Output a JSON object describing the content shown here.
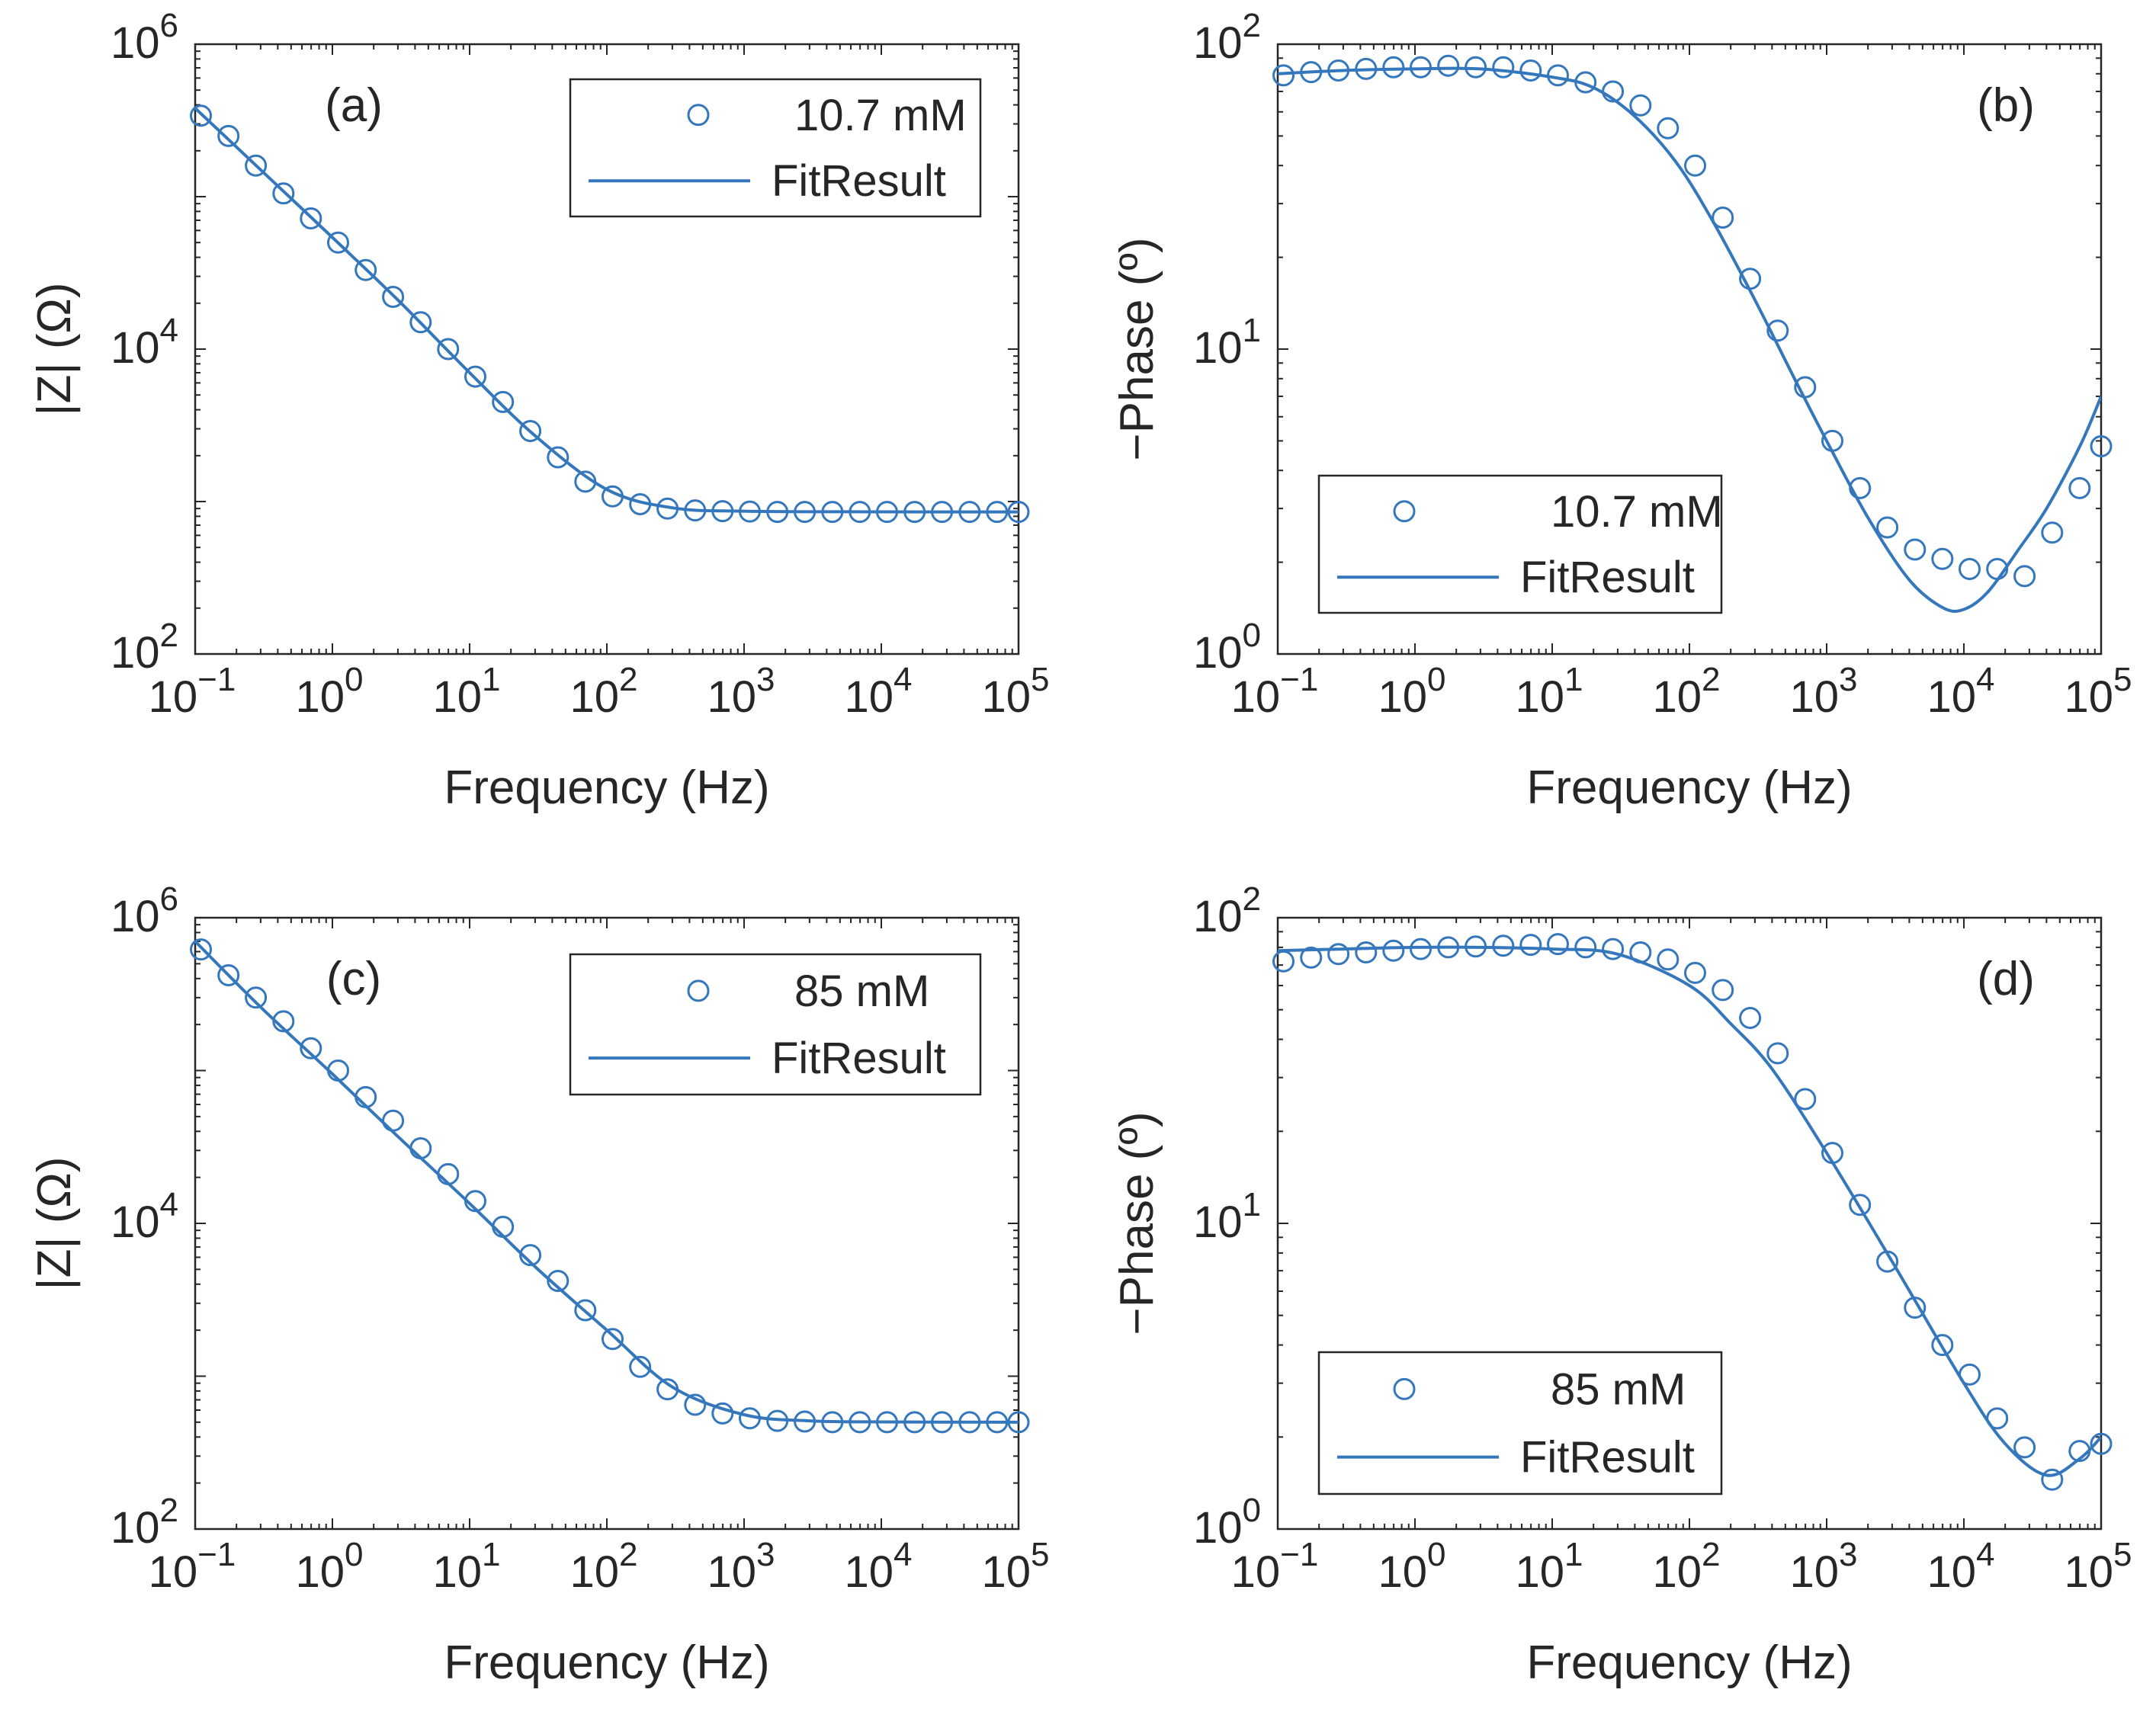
{
  "style": {
    "series_color": "#3577BC",
    "axis_color": "#262626"
  },
  "chart_data": [
    {
      "id": "a",
      "type": "scatter",
      "panel_label": "(a)",
      "xlabel": "Frequency (Hz)",
      "ylabel": "|Z| (Ω)",
      "xscale": "log",
      "yscale": "log",
      "xlim": [
        0.1,
        100000
      ],
      "ylim": [
        100,
        1000000
      ],
      "xticks": [
        {
          "base": "10",
          "exp": "−1"
        },
        {
          "base": "10",
          "exp": "0"
        },
        {
          "base": "10",
          "exp": "1"
        },
        {
          "base": "10",
          "exp": "2"
        },
        {
          "base": "10",
          "exp": "3"
        },
        {
          "base": "10",
          "exp": "4"
        },
        {
          "base": "10",
          "exp": "5"
        }
      ],
      "yticks": [
        {
          "base": "10",
          "exp": "2"
        },
        {
          "base": "10",
          "exp": "4"
        },
        {
          "base": "10",
          "exp": "6"
        }
      ],
      "legend": {
        "position": "top-right",
        "marker_label": "10.7 mM",
        "line_label": "FitResult"
      },
      "series": [
        {
          "name": "10.7 mM",
          "kind": "markers",
          "x": [
            0.11,
            0.175,
            0.277,
            0.44,
            0.697,
            1.1,
            1.75,
            2.77,
            4.4,
            6.97,
            11,
            17.5,
            27.7,
            44,
            69.7,
            110,
            175,
            277,
            440,
            697,
            1100,
            1750,
            2770,
            4400,
            6970,
            11000,
            17500,
            27700,
            44000,
            69700,
            100000
          ],
          "y": [
            340000,
            250000,
            160000,
            105000,
            72000,
            50000,
            33000,
            22000,
            15000,
            10000,
            6600,
            4500,
            2900,
            1950,
            1350,
            1080,
            960,
            900,
            875,
            865,
            860,
            855,
            855,
            855,
            855,
            855,
            855,
            855,
            855,
            855,
            855
          ]
        },
        {
          "name": "FitResult",
          "kind": "line",
          "x": [
            0.1,
            0.3,
            1,
            3,
            10,
            30,
            100,
            300,
            1000,
            10000,
            100000
          ],
          "y": [
            380000,
            150000,
            54000,
            21000,
            7000,
            2700,
            1200,
            910,
            865,
            856,
            855
          ]
        }
      ]
    },
    {
      "id": "b",
      "type": "scatter",
      "panel_label": "(b)",
      "xlabel": "Frequency (Hz)",
      "ylabel": "−Phase (º)",
      "xscale": "log",
      "yscale": "log",
      "xlim": [
        0.1,
        100000
      ],
      "ylim": [
        1,
        100
      ],
      "xticks": [
        {
          "base": "10",
          "exp": "−1"
        },
        {
          "base": "10",
          "exp": "0"
        },
        {
          "base": "10",
          "exp": "1"
        },
        {
          "base": "10",
          "exp": "2"
        },
        {
          "base": "10",
          "exp": "3"
        },
        {
          "base": "10",
          "exp": "4"
        },
        {
          "base": "10",
          "exp": "5"
        }
      ],
      "yticks": [
        {
          "base": "10",
          "exp": "0"
        },
        {
          "base": "10",
          "exp": "1"
        },
        {
          "base": "10",
          "exp": "2"
        }
      ],
      "legend": {
        "position": "bottom-left",
        "marker_label": "10.7 mM",
        "line_label": "FitResult"
      },
      "series": [
        {
          "name": "10.7 mM",
          "kind": "markers",
          "x": [
            0.11,
            0.175,
            0.277,
            0.44,
            0.697,
            1.1,
            1.75,
            2.77,
            4.4,
            6.97,
            11,
            17.5,
            27.7,
            44,
            69.7,
            110,
            175,
            277,
            440,
            697,
            1100,
            1750,
            2770,
            4400,
            6970,
            11000,
            17500,
            27700,
            44000,
            69700,
            100000
          ],
          "y": [
            79,
            81,
            82,
            83,
            84,
            84,
            85,
            84,
            84,
            82,
            79,
            75,
            70,
            63,
            53,
            40,
            27,
            17,
            11.5,
            7.5,
            5,
            3.5,
            2.6,
            2.2,
            2.05,
            1.9,
            1.9,
            1.8,
            2.5,
            3.5,
            4.8
          ]
        },
        {
          "name": "FitResult",
          "kind": "line",
          "x": [
            0.1,
            0.3,
            1,
            3,
            10,
            20,
            40,
            80,
            150,
            300,
            600,
            1000,
            2000,
            4000,
            7000,
            10000,
            15000,
            25000,
            40000,
            70000,
            100000
          ],
          "y": [
            80,
            82,
            83,
            83,
            78,
            72,
            58,
            41,
            26,
            14.5,
            7.8,
            5,
            2.8,
            1.75,
            1.42,
            1.4,
            1.6,
            2.2,
            3,
            4.8,
            7
          ]
        }
      ]
    },
    {
      "id": "c",
      "type": "scatter",
      "panel_label": "(c)",
      "xlabel": "Frequency (Hz)",
      "ylabel": "|Z| (Ω)",
      "xscale": "log",
      "yscale": "log",
      "xlim": [
        0.1,
        100000
      ],
      "ylim": [
        100,
        1000000
      ],
      "xticks": [
        {
          "base": "10",
          "exp": "−1"
        },
        {
          "base": "10",
          "exp": "0"
        },
        {
          "base": "10",
          "exp": "1"
        },
        {
          "base": "10",
          "exp": "2"
        },
        {
          "base": "10",
          "exp": "3"
        },
        {
          "base": "10",
          "exp": "4"
        },
        {
          "base": "10",
          "exp": "5"
        }
      ],
      "yticks": [
        {
          "base": "10",
          "exp": "2"
        },
        {
          "base": "10",
          "exp": "4"
        },
        {
          "base": "10",
          "exp": "6"
        }
      ],
      "legend": {
        "position": "top-right",
        "marker_label": "85 mM",
        "line_label": "FitResult"
      },
      "series": [
        {
          "name": "85 mM",
          "kind": "markers",
          "x": [
            0.11,
            0.175,
            0.277,
            0.44,
            0.697,
            1.1,
            1.75,
            2.77,
            4.4,
            6.97,
            11,
            17.5,
            27.7,
            44,
            69.7,
            110,
            175,
            277,
            440,
            697,
            1100,
            1750,
            2770,
            4400,
            6970,
            11000,
            17500,
            27700,
            44000,
            69700,
            100000
          ],
          "y": [
            620000,
            420000,
            300000,
            210000,
            140000,
            100000,
            67000,
            47000,
            31000,
            21000,
            14000,
            9500,
            6200,
            4200,
            2700,
            1750,
            1150,
            820,
            650,
            570,
            530,
            510,
            505,
            500,
            500,
            500,
            500,
            500,
            500,
            500,
            500
          ]
        },
        {
          "name": "FitResult",
          "kind": "line",
          "x": [
            0.1,
            0.3,
            1,
            3,
            10,
            30,
            100,
            300,
            1000,
            3000,
            10000,
            100000
          ],
          "y": [
            700000,
            260000,
            95000,
            37000,
            13500,
            5200,
            2000,
            850,
            560,
            510,
            502,
            500
          ]
        }
      ]
    },
    {
      "id": "d",
      "type": "scatter",
      "panel_label": "(d)",
      "xlabel": "Frequency (Hz)",
      "ylabel": "−Phase (º)",
      "xscale": "log",
      "yscale": "log",
      "xlim": [
        0.1,
        100000
      ],
      "ylim": [
        1,
        100
      ],
      "xticks": [
        {
          "base": "10",
          "exp": "−1"
        },
        {
          "base": "10",
          "exp": "0"
        },
        {
          "base": "10",
          "exp": "1"
        },
        {
          "base": "10",
          "exp": "2"
        },
        {
          "base": "10",
          "exp": "3"
        },
        {
          "base": "10",
          "exp": "4"
        },
        {
          "base": "10",
          "exp": "5"
        }
      ],
      "yticks": [
        {
          "base": "10",
          "exp": "0"
        },
        {
          "base": "10",
          "exp": "1"
        },
        {
          "base": "10",
          "exp": "2"
        }
      ],
      "legend": {
        "position": "bottom-left",
        "marker_label": "85 mM",
        "line_label": "FitResult"
      },
      "series": [
        {
          "name": "85 mM",
          "kind": "markers",
          "x": [
            0.11,
            0.175,
            0.277,
            0.44,
            0.697,
            1.1,
            1.75,
            2.77,
            4.4,
            6.97,
            11,
            17.5,
            27.7,
            44,
            69.7,
            110,
            175,
            277,
            440,
            697,
            1100,
            1750,
            2770,
            4400,
            6970,
            11000,
            17500,
            27700,
            44000,
            69700,
            100000
          ],
          "y": [
            72,
            74,
            76,
            77,
            78,
            79,
            80,
            80.5,
            81,
            81.5,
            82,
            80,
            79,
            77,
            73,
            66,
            58,
            47,
            36,
            25.5,
            17,
            11.5,
            7.5,
            5.3,
            4,
            3.2,
            2.3,
            1.85,
            1.45,
            1.8,
            1.9
          ]
        },
        {
          "name": "FitResult",
          "kind": "line",
          "x": [
            0.1,
            0.3,
            1,
            3,
            10,
            30,
            100,
            200,
            400,
            1000,
            3000,
            10000,
            20000,
            40000,
            70000,
            100000
          ],
          "y": [
            78,
            79,
            80,
            80,
            79,
            76,
            60,
            45,
            32,
            17,
            7.5,
            3,
            1.9,
            1.5,
            1.7,
            2.0
          ]
        }
      ]
    }
  ]
}
